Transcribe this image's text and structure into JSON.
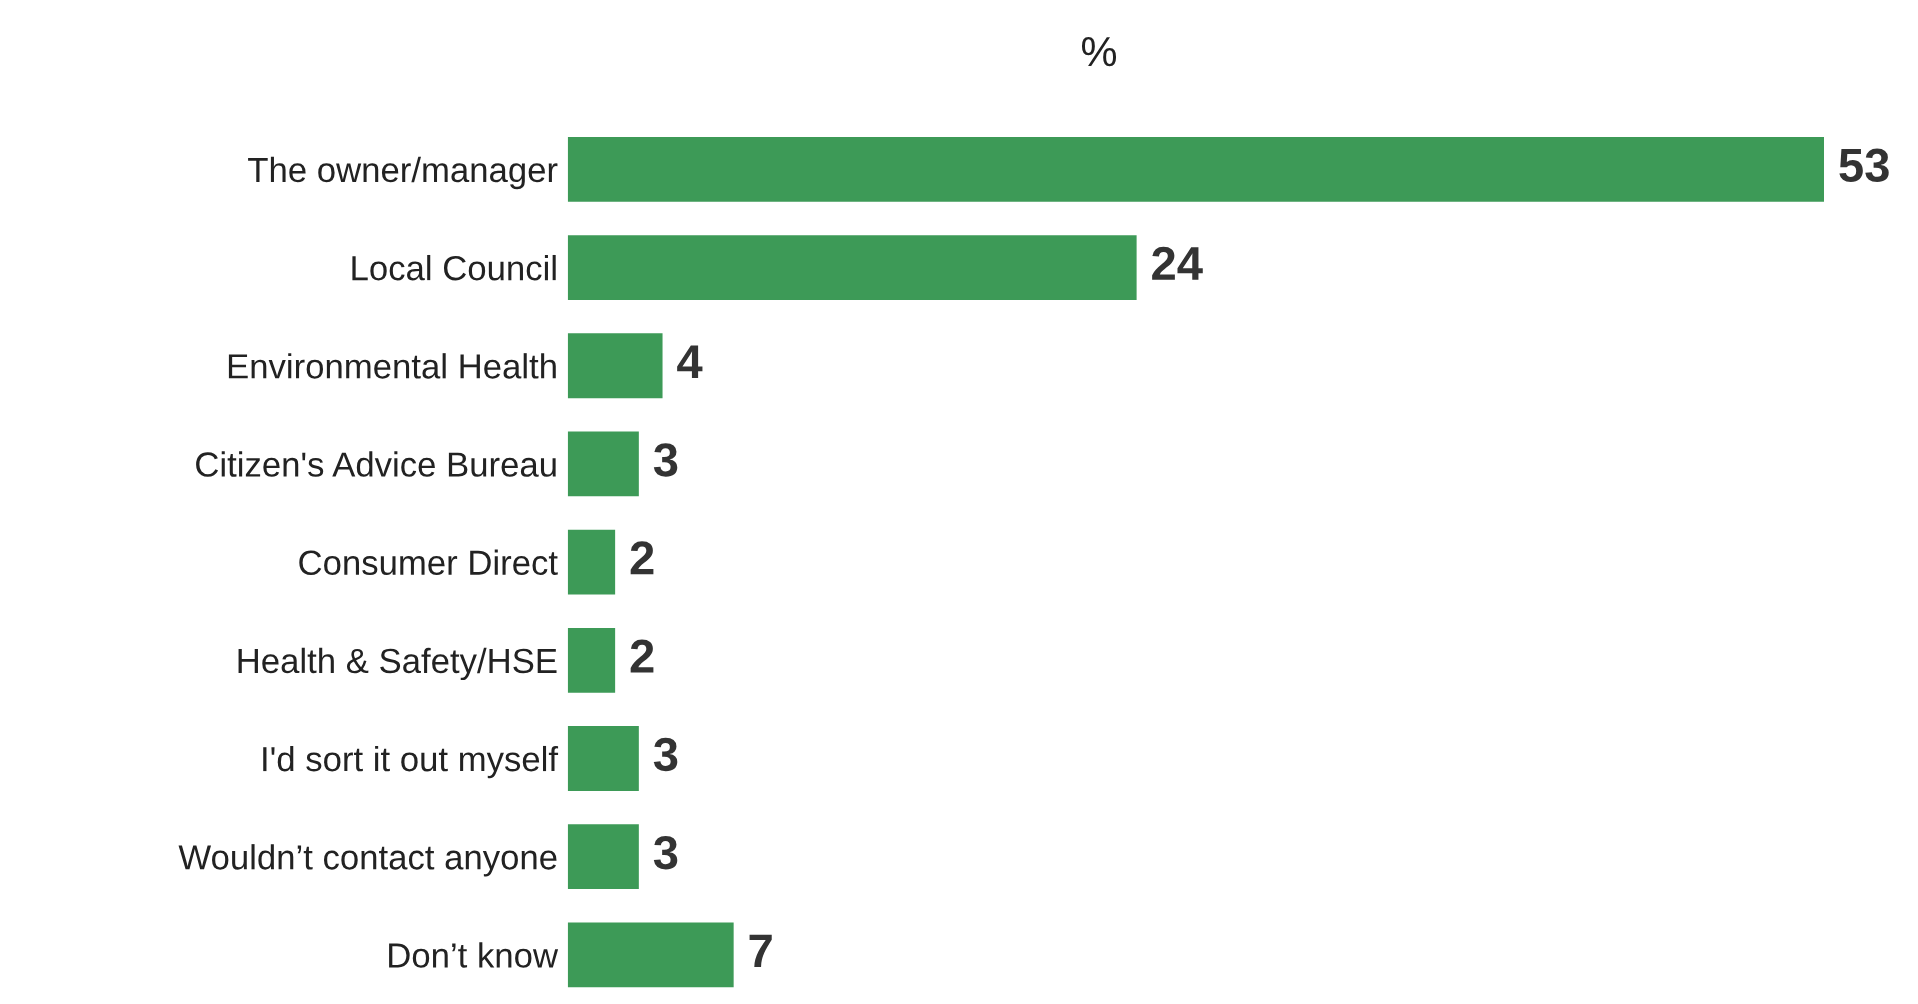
{
  "chart_data": {
    "type": "bar",
    "orientation": "horizontal",
    "title": "%",
    "categories": [
      "The owner/manager",
      "Local Council",
      "Environmental Health",
      "Citizen's Advice Bureau",
      "Consumer Direct",
      "Health & Safety/HSE",
      "I'd sort it out myself",
      "Wouldn’t contact anyone",
      "Don’t know"
    ],
    "values": [
      53,
      24,
      4,
      3,
      2,
      2,
      3,
      3,
      7
    ],
    "color": "#3d9a57",
    "data_labels": true,
    "grid": false,
    "legend": false,
    "tick_labels": "y"
  }
}
